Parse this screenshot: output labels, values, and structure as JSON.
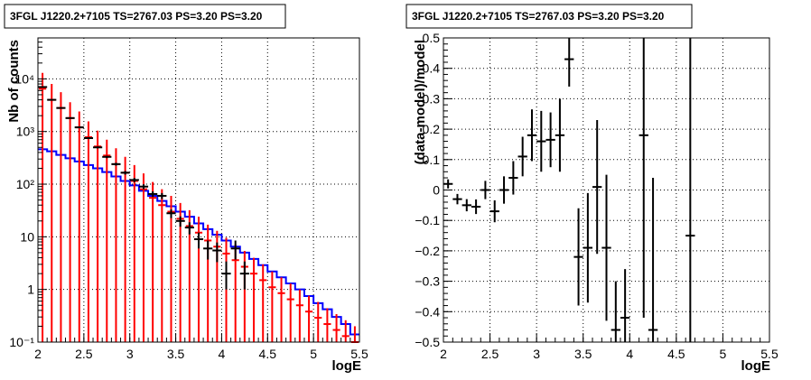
{
  "colors": {
    "data": "#000000",
    "model": "#ff0000",
    "background": "#0000ff",
    "grid": "#000000"
  },
  "chart_data": [
    {
      "type": "histogram",
      "title": "3FGL J1220.2+7105 TS=2767.03 PS=3.20 PS=3.20",
      "xlabel": "logE",
      "ylabel": "Nb of counts",
      "xlim": [
        2,
        5.5
      ],
      "ylim": [
        0.1,
        60000
      ],
      "yscale": "log",
      "grid": true,
      "xticks": [
        "2",
        "2.5",
        "3",
        "3.5",
        "4",
        "4.5",
        "5",
        "5.5"
      ],
      "yticks": [
        {
          "value": 0.1,
          "label": "10⁻¹"
        },
        {
          "value": 1,
          "label": "1"
        },
        {
          "value": 10,
          "label": "10"
        },
        {
          "value": 100,
          "label": "10²"
        },
        {
          "value": 1000,
          "label": "10³"
        },
        {
          "value": 10000,
          "label": "10⁴"
        }
      ],
      "bin_edges": [
        2.0,
        2.1,
        2.2,
        2.3,
        2.4,
        2.5,
        2.6,
        2.7,
        2.8,
        2.9,
        3.0,
        3.1,
        3.2,
        3.3,
        3.4,
        3.5,
        3.6,
        3.7,
        3.8,
        3.9,
        4.0,
        4.1,
        4.2,
        4.3,
        4.4,
        4.5,
        4.6,
        4.7,
        4.8,
        4.9,
        5.0,
        5.1,
        5.2,
        5.3,
        5.4,
        5.5
      ],
      "series": [
        {
          "role": "data",
          "x": [
            2.05,
            2.15,
            2.25,
            2.35,
            2.45,
            2.55,
            2.65,
            2.75,
            2.85,
            2.95,
            3.05,
            3.15,
            3.25,
            3.35,
            3.45,
            3.55,
            3.65,
            3.75,
            3.85,
            3.95,
            4.05,
            4.15,
            4.25
          ],
          "y": [
            7000,
            4000,
            2800,
            1800,
            1200,
            750,
            500,
            330,
            240,
            165,
            120,
            90,
            65,
            60,
            28,
            20,
            15,
            9,
            6,
            5.5,
            2,
            6,
            2
          ],
          "yerr_low": [
            84,
            63,
            53,
            42,
            35,
            27,
            22,
            18,
            15,
            13,
            11,
            9.5,
            8,
            7.7,
            5.3,
            4.5,
            3.9,
            3,
            2.3,
            2.2,
            1.0,
            2.3,
            1.0
          ],
          "yerr_high": [
            84,
            63,
            53,
            42,
            35,
            27,
            22,
            18,
            15,
            13,
            11,
            9.5,
            8,
            7.7,
            5.3,
            4.5,
            3.9,
            3,
            2.5,
            2.3,
            1.4,
            2.5,
            1.4
          ]
        },
        {
          "role": "model",
          "x": [
            2.05,
            2.15,
            2.25,
            2.35,
            2.45,
            2.55,
            2.65,
            2.75,
            2.85,
            2.95,
            3.05,
            3.15,
            3.25,
            3.35,
            3.45,
            3.55,
            3.65,
            3.75,
            3.85,
            3.95,
            4.05,
            4.15,
            4.25,
            4.35,
            4.45,
            4.55,
            4.65,
            4.75,
            4.85,
            4.95,
            5.05,
            5.15,
            5.25,
            5.35,
            5.45
          ],
          "y": [
            6500,
            4000,
            2800,
            1800,
            1200,
            780,
            520,
            350,
            240,
            165,
            115,
            80,
            55,
            40,
            30,
            22,
            16,
            12,
            8.5,
            6.5,
            4.8,
            3.6,
            2.7,
            2.0,
            1.5,
            1.1,
            0.85,
            0.65,
            0.5,
            0.38,
            0.29,
            0.22,
            0.17,
            0.13,
            0.1
          ],
          "err": [
            6500,
            4000,
            2800,
            1800,
            1200,
            780,
            520,
            350,
            240,
            165,
            115,
            80,
            55,
            40,
            30,
            22,
            16,
            12,
            8.5,
            6.5,
            4.8,
            3.6,
            2.7,
            2.0,
            1.5,
            1.1,
            0.85,
            0.65,
            0.5,
            0.38,
            0.29,
            0.22,
            0.17,
            0.13,
            0.1
          ]
        },
        {
          "role": "background",
          "x": [
            2.05,
            2.15,
            2.25,
            2.35,
            2.45,
            2.55,
            2.65,
            2.75,
            2.85,
            2.95,
            3.05,
            3.15,
            3.25,
            3.35,
            3.45,
            3.55,
            3.65,
            3.75,
            3.85,
            3.95,
            4.05,
            4.15,
            4.25,
            4.35,
            4.45,
            4.55,
            4.65,
            4.75,
            4.85,
            4.95,
            5.05,
            5.15,
            5.25,
            5.35,
            5.45
          ],
          "y": [
            460,
            420,
            360,
            310,
            270,
            230,
            200,
            170,
            140,
            115,
            95,
            75,
            60,
            48,
            38,
            30,
            24,
            18,
            14,
            11,
            8.5,
            6.5,
            5,
            3.8,
            2.9,
            2.2,
            1.7,
            1.3,
            1.0,
            0.75,
            0.55,
            0.42,
            0.3,
            0.22,
            0.14
          ]
        }
      ]
    },
    {
      "type": "scatter",
      "title": "3FGL J1220.2+7105 TS=2767.03 PS=3.20 PS=3.20",
      "xlabel": "logE",
      "ylabel": "(data-model)/model",
      "xlim": [
        2,
        5.5
      ],
      "ylim": [
        -0.5,
        0.5
      ],
      "grid": true,
      "xticks": [
        "2",
        "2.5",
        "3",
        "3.5",
        "4",
        "4.5",
        "5",
        "5.5"
      ],
      "yticks": [
        "−0.5",
        "−0.4",
        "−0.3",
        "−0.2",
        "−0.1",
        "0",
        "0.1",
        "0.2",
        "0.3",
        "0.4",
        "0.5"
      ],
      "series": [
        {
          "role": "residual",
          "x": [
            2.05,
            2.15,
            2.25,
            2.35,
            2.45,
            2.55,
            2.65,
            2.75,
            2.85,
            2.95,
            3.05,
            3.15,
            3.25,
            3.35,
            3.45,
            3.55,
            3.65,
            3.75,
            3.85,
            3.95,
            4.15,
            4.25,
            4.65
          ],
          "y": [
            0.02,
            -0.03,
            -0.05,
            -0.055,
            0.0,
            -0.07,
            0.0,
            0.04,
            0.11,
            0.18,
            0.16,
            0.165,
            0.18,
            0.43,
            -0.22,
            -0.19,
            0.01,
            -0.19,
            -0.46,
            -0.42,
            0.18,
            -0.46,
            -0.15
          ],
          "yerr": [
            0.015,
            0.017,
            0.02,
            0.024,
            0.03,
            0.036,
            0.045,
            0.055,
            0.065,
            0.085,
            0.1,
            0.09,
            0.12,
            0.09,
            0.16,
            0.18,
            0.22,
            0.24,
            0.16,
            0.16,
            0.6,
            0.5,
            1.0
          ]
        }
      ]
    }
  ]
}
